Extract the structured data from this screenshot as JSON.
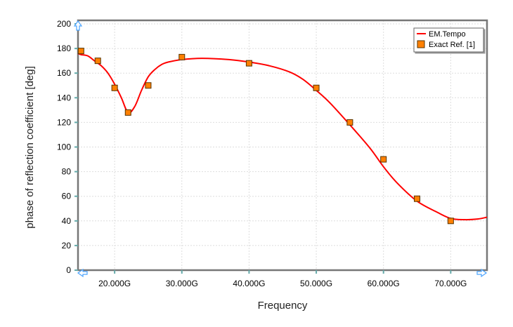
{
  "chart_data": {
    "type": "line",
    "xlabel": "Frequency",
    "ylabel": "phase of reflection coefficient [deg]",
    "xlim": [
      14.55,
      75.4
    ],
    "ylim": [
      0,
      200
    ],
    "xticks": [
      20,
      30,
      40,
      50,
      60,
      70
    ],
    "xtick_labels": [
      "20.000G",
      "30.000G",
      "40.000G",
      "50.000G",
      "60.000G",
      "70.000G"
    ],
    "yticks": [
      0,
      20,
      40,
      60,
      80,
      100,
      120,
      140,
      160,
      180,
      200
    ],
    "ytick_labels": [
      "0",
      "20",
      "40",
      "60",
      "80",
      "100",
      "120",
      "140",
      "160",
      "180",
      "200"
    ],
    "grid": true,
    "legend_position": "top-right",
    "series": [
      {
        "name": "EM.Tempo",
        "kind": "line",
        "color": "#ff0000",
        "x": [
          14.55,
          15,
          16,
          17,
          18,
          19,
          20,
          21,
          22,
          23,
          24,
          25,
          26,
          27,
          28,
          30,
          33,
          37,
          40,
          43,
          46,
          48,
          50,
          52,
          55,
          58,
          60,
          62,
          65,
          68,
          70,
          72,
          74,
          75.4
        ],
        "y": [
          176,
          175,
          174,
          170,
          166,
          160,
          151,
          140,
          128,
          133,
          146,
          157,
          163,
          167,
          169,
          171,
          172,
          171,
          169,
          166,
          161,
          155,
          146,
          136,
          118,
          99,
          84,
          71,
          56,
          47,
          42,
          41,
          41.5,
          43
        ]
      },
      {
        "name": "Exact Ref. [1]",
        "kind": "scatter",
        "color": "#ff8000",
        "x": [
          15,
          17.5,
          20,
          22,
          25,
          30,
          40,
          50,
          55,
          60,
          65,
          70
        ],
        "y": [
          178,
          170,
          148,
          128,
          150,
          173,
          168,
          148,
          120,
          90,
          58,
          40
        ]
      }
    ]
  }
}
